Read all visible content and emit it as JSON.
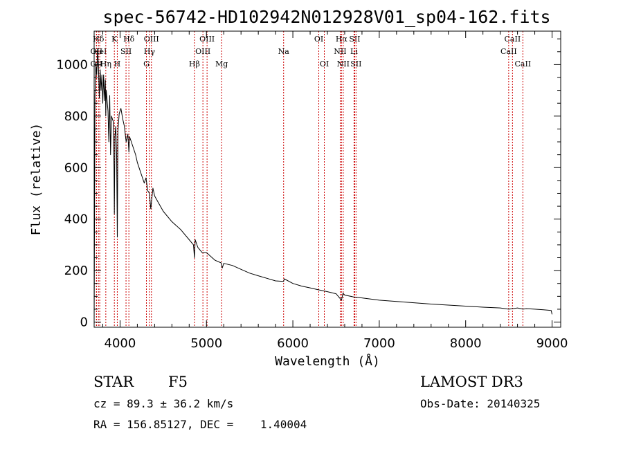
{
  "chart_data": {
    "type": "line",
    "title": "spec-56742-HD102942N012928V01_sp04-162.fits",
    "xlabel": "Wavelength (Å)",
    "ylabel": "Flux (relative)",
    "xlim": [
      3700,
      9100
    ],
    "ylim": [
      -20,
      1130
    ],
    "x_ticks": [
      4000,
      5000,
      6000,
      7000,
      8000,
      9000
    ],
    "y_ticks": [
      0,
      200,
      400,
      600,
      800,
      1000
    ],
    "series": [
      {
        "name": "spectrum",
        "x": [
          3700,
          3710,
          3720,
          3730,
          3740,
          3750,
          3760,
          3770,
          3780,
          3790,
          3800,
          3810,
          3820,
          3830,
          3835,
          3840,
          3860,
          3870,
          3880,
          3890,
          3900,
          3920,
          3930,
          3934,
          3940,
          3950,
          3960,
          3968,
          3975,
          3990,
          4010,
          4030,
          4050,
          4070,
          4090,
          4102,
          4110,
          4130,
          4150,
          4180,
          4200,
          4220,
          4250,
          4280,
          4300,
          4320,
          4340,
          4355,
          4380,
          4400,
          4450,
          4500,
          4600,
          4700,
          4800,
          4850,
          4861,
          4870,
          4900,
          4950,
          5000,
          5100,
          5170,
          5183,
          5200,
          5300,
          5400,
          5500,
          5600,
          5700,
          5800,
          5893,
          5900,
          6000,
          6100,
          6200,
          6300,
          6400,
          6500,
          6563,
          6580,
          6600,
          6700,
          6800,
          7000,
          7200,
          7400,
          7600,
          7800,
          8000,
          8200,
          8400,
          8498,
          8542,
          8600,
          8662,
          8700,
          8800,
          8900,
          8990,
          9000
        ],
        "values": [
          0,
          880,
          1000,
          960,
          1060,
          1000,
          870,
          980,
          900,
          960,
          850,
          960,
          860,
          940,
          800,
          900,
          820,
          700,
          880,
          650,
          800,
          780,
          600,
          420,
          720,
          760,
          650,
          330,
          740,
          810,
          830,
          790,
          760,
          700,
          730,
          660,
          720,
          700,
          680,
          650,
          620,
          600,
          570,
          540,
          560,
          510,
          500,
          440,
          520,
          490,
          460,
          430,
          390,
          360,
          320,
          300,
          250,
          320,
          290,
          270,
          270,
          240,
          230,
          210,
          228,
          220,
          205,
          190,
          180,
          170,
          160,
          158,
          168,
          150,
          140,
          133,
          125,
          118,
          110,
          85,
          112,
          105,
          98,
          94,
          85,
          80,
          75,
          70,
          66,
          62,
          58,
          55,
          50,
          52,
          55,
          50,
          52,
          50,
          48,
          45,
          30
        ]
      }
    ],
    "lines": [
      {
        "label": "Hδ",
        "wl": 3750,
        "row": 0
      },
      {
        "label": "OII",
        "wl": 3727,
        "row": 1
      },
      {
        "label": "HeI",
        "wl": 3765,
        "row": 1
      },
      {
        "label": "OII",
        "wl": 3727,
        "row": 2
      },
      {
        "label": "Hη",
        "wl": 3835,
        "row": 2
      },
      {
        "label": "K",
        "wl": 3934,
        "row": 0
      },
      {
        "label": "SII",
        "wl": 4069,
        "row": 1
      },
      {
        "label": "H",
        "wl": 3968,
        "row": 2
      },
      {
        "label": "Hδ",
        "wl": 4102,
        "row": 0
      },
      {
        "label": "OIII",
        "wl": 4363,
        "row": 0
      },
      {
        "label": "Hγ",
        "wl": 4340,
        "row": 1
      },
      {
        "label": "G",
        "wl": 4305,
        "row": 2
      },
      {
        "label": "OIII",
        "wl": 5007,
        "row": 0
      },
      {
        "label": "OIII",
        "wl": 4959,
        "row": 1
      },
      {
        "label": "Hβ",
        "wl": 4861,
        "row": 2
      },
      {
        "label": "Mg",
        "wl": 5175,
        "row": 2
      },
      {
        "label": "Na",
        "wl": 5893,
        "row": 1
      },
      {
        "label": "OI",
        "wl": 6300,
        "row": 0
      },
      {
        "label": "OI",
        "wl": 6364,
        "row": 2
      },
      {
        "label": "Hα",
        "wl": 6563,
        "row": 0
      },
      {
        "label": "SII",
        "wl": 6716,
        "row": 0
      },
      {
        "label": "NII",
        "wl": 6548,
        "row": 1
      },
      {
        "label": "Li",
        "wl": 6708,
        "row": 1
      },
      {
        "label": "NII",
        "wl": 6583,
        "row": 2
      },
      {
        "label": "SII",
        "wl": 6731,
        "row": 2
      },
      {
        "label": "CaII",
        "wl": 8542,
        "row": 0
      },
      {
        "label": "CaII",
        "wl": 8498,
        "row": 1
      },
      {
        "label": "CaII",
        "wl": 8662,
        "row": 2
      }
    ],
    "line_color": "#cc0000",
    "spectrum_color": "#000000"
  },
  "info": {
    "object_class": "STAR",
    "subclass": "F5",
    "survey": "LAMOST DR3",
    "redshift": "cz = 89.3 ± 36.2 km/s",
    "obs_date": "Obs-Date: 20140325",
    "coords": "RA = 156.85127, DEC =    1.40004"
  }
}
